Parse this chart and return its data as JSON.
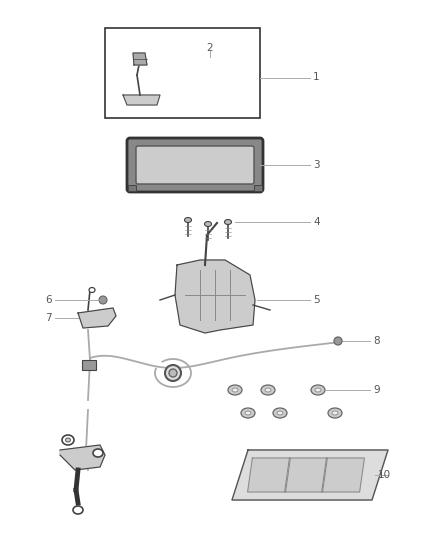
{
  "bg_color": "#ffffff",
  "fig_width": 4.38,
  "fig_height": 5.33,
  "dpi": 100,
  "line_color": "#999999",
  "dark_color": "#444444",
  "label_color": "#555555",
  "label_fontsize": 7.5
}
